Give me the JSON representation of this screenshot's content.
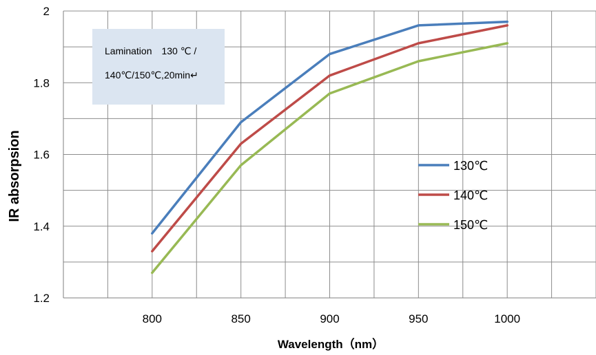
{
  "chart_data": {
    "type": "line",
    "xlabel": "Wavelength（nm）",
    "ylabel": "IR absorpsion",
    "x": [
      800,
      850,
      900,
      950,
      1000
    ],
    "xlim": [
      750,
      1050
    ],
    "ylim": [
      1.2,
      2.0
    ],
    "xticks": [
      "800",
      "850",
      "900",
      "950",
      "1000"
    ],
    "yticks": [
      "1.2",
      "1.4",
      "1.6",
      "1.8",
      "2"
    ],
    "grid": "vertical and horizontal",
    "legend_position": "center-right",
    "series": [
      {
        "name": "130℃",
        "color": "#4a7ebb",
        "values": [
          1.38,
          1.69,
          1.88,
          1.96,
          1.97
        ]
      },
      {
        "name": "140℃",
        "color": "#be4b48",
        "values": [
          1.33,
          1.63,
          1.82,
          1.91,
          1.96
        ]
      },
      {
        "name": "150℃",
        "color": "#98b954",
        "values": [
          1.27,
          1.57,
          1.77,
          1.86,
          1.91
        ]
      }
    ],
    "annotation": {
      "line1": "Lamination　130 ℃ /",
      "line2": "140℃/150℃,20min↵",
      "background": "#dbe5f1"
    }
  }
}
